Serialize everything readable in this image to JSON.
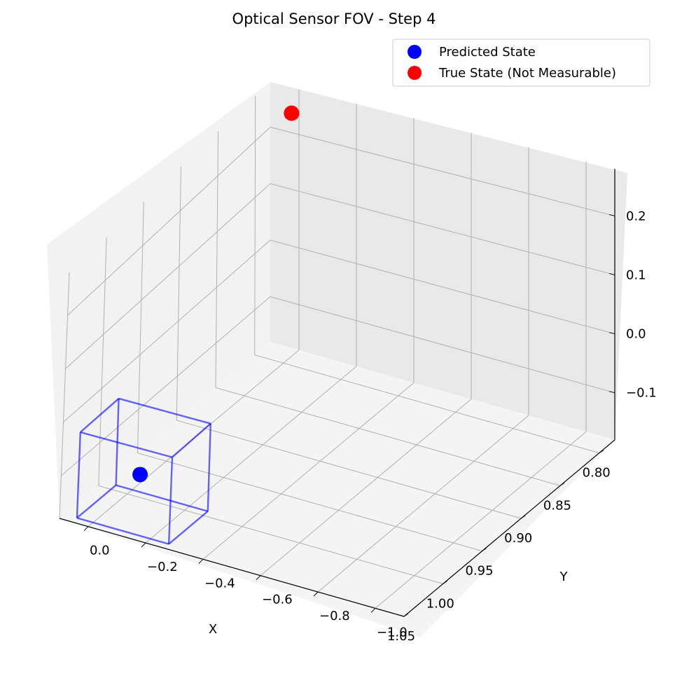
{
  "chart_data": {
    "type": "scatter",
    "projection": "3d",
    "title": "Optical Sensor FOV - Step 4",
    "xlabel": "X",
    "ylabel": "Y",
    "zlabel": "",
    "xlim": [
      0.78,
      1.05
    ],
    "ylim": [
      -1.1,
      0.1
    ],
    "zlim": [
      -0.18,
      0.28
    ],
    "x_ticks": [
      "0.80",
      "0.85",
      "0.90",
      "0.95",
      "1.00",
      "1.05"
    ],
    "y_ticks": [
      "0.0",
      "−0.2",
      "−0.4",
      "−0.6",
      "−0.8",
      "−1.0"
    ],
    "z_ticks": [
      "0.2",
      "0.1",
      "0.0",
      "−0.1"
    ],
    "grid": true,
    "legend_position": "top-right",
    "series": [
      {
        "name": "Predicted State",
        "color": "#0000ff",
        "points": [
          {
            "x": 1.03,
            "y": -0.12,
            "z": -0.09
          }
        ]
      },
      {
        "name": "True State (Not Measurable)",
        "color": "#ff0000",
        "points": [
          {
            "x": 0.79,
            "y": 0.0,
            "z": 0.25
          }
        ]
      }
    ],
    "fov_box": {
      "color": "#0000ff",
      "center": {
        "x": 1.03,
        "y": -0.12,
        "z": -0.09
      },
      "x_range": [
        1.0,
        1.05
      ],
      "y_range": [
        -0.28,
        0.04
      ],
      "z_range": [
        -0.17,
        -0.01
      ]
    }
  }
}
